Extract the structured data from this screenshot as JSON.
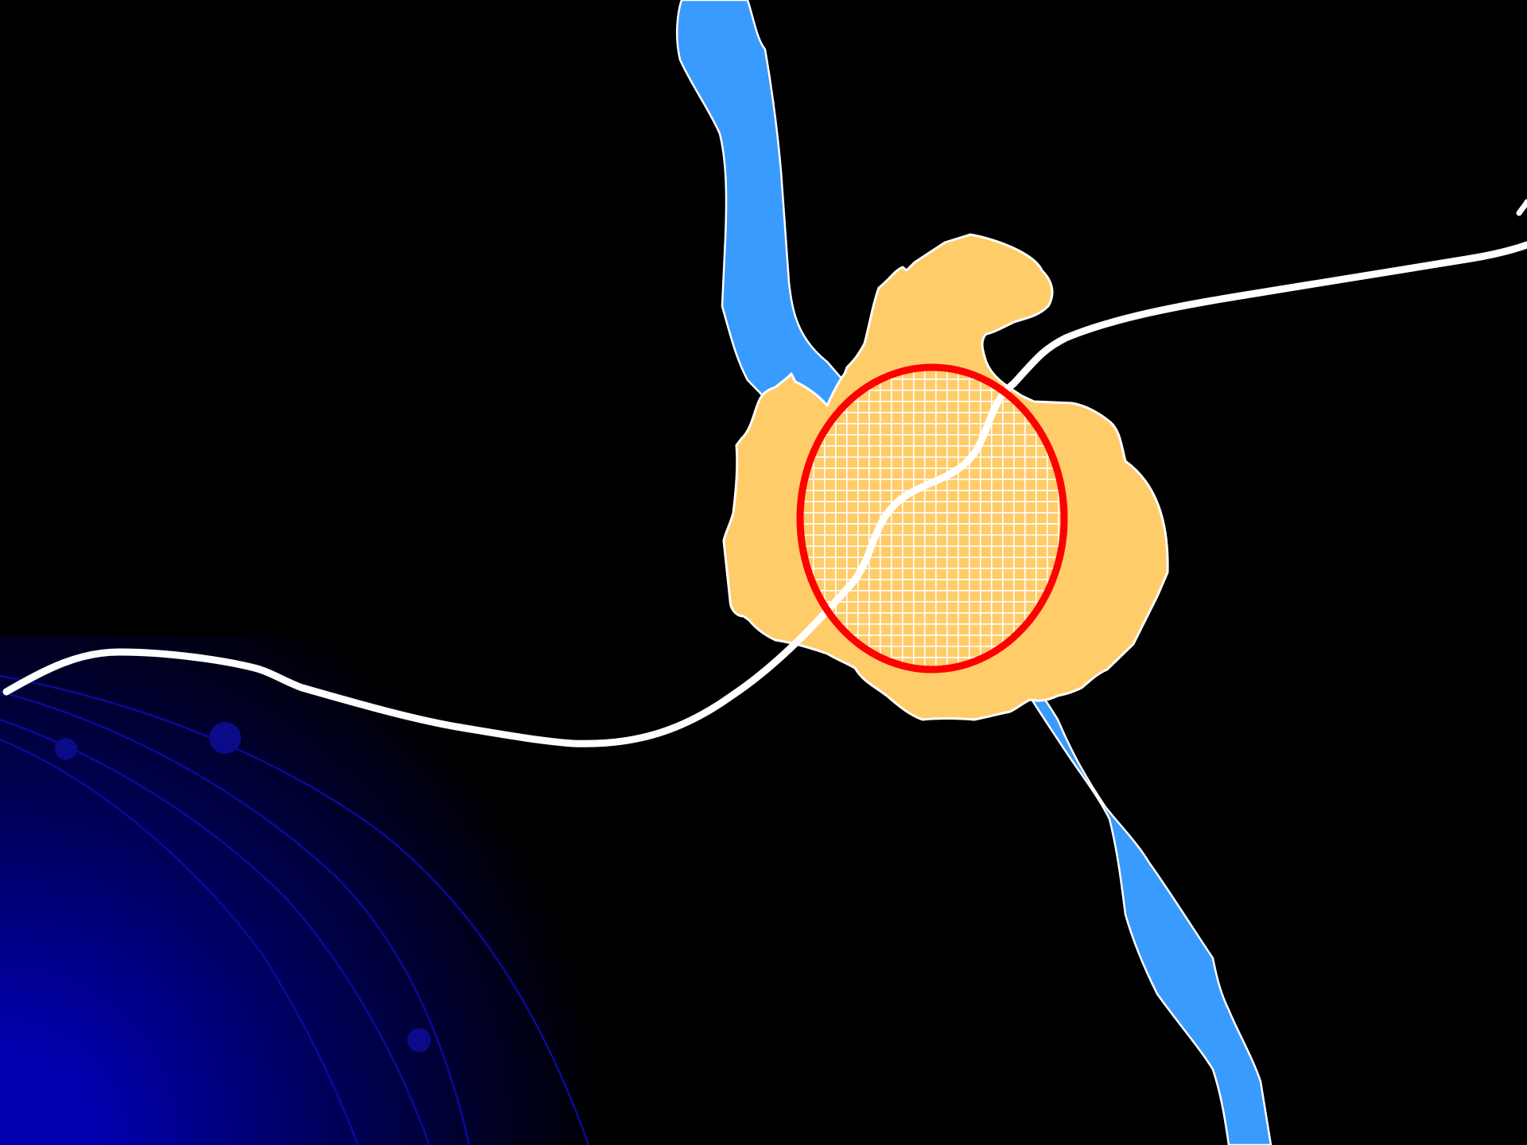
{
  "slide": {
    "background_color": "#000000"
  },
  "decoration": {
    "corner_gradient_inner": "#0000b0",
    "corner_gradient_outer": "#000000",
    "orbit_line_color": "#0a0a9a",
    "orbit_node_color": "#0b0b8a"
  },
  "map": {
    "river": {
      "fill": "#3a9bff",
      "outline": "#ffffff"
    },
    "city_area": {
      "fill": "#ffcc6a",
      "outline": "#ffffff"
    },
    "city_center": {
      "hatch_color": "#ffffff",
      "outline": "#ff0000"
    },
    "road": {
      "color": "#ffffff"
    }
  }
}
